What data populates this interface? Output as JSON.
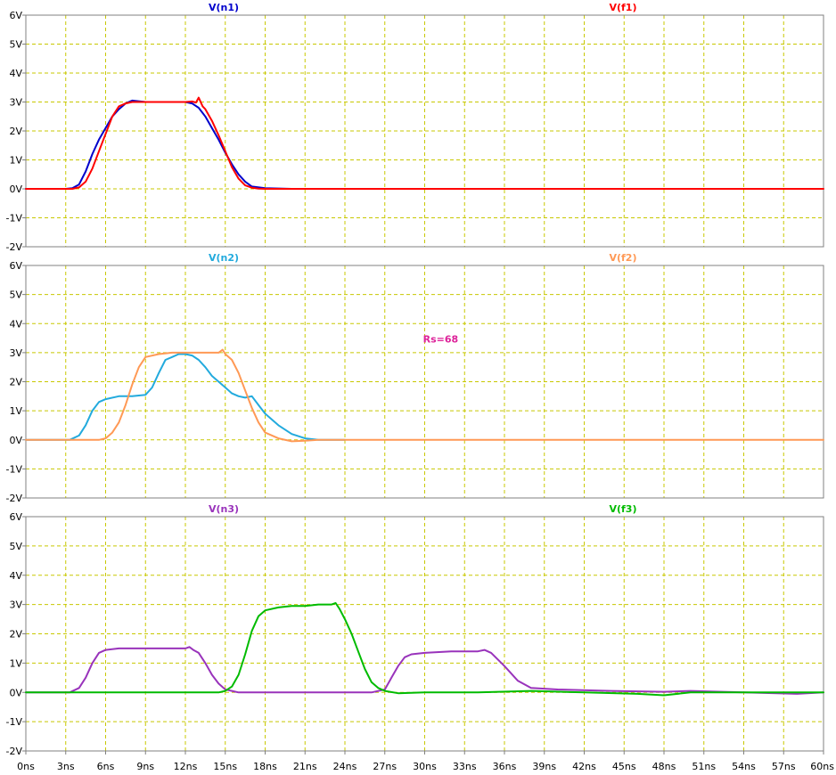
{
  "chart_data": [
    {
      "type": "line",
      "title": "",
      "xlabel": "",
      "ylabel": "",
      "xlim": [
        0,
        60
      ],
      "ylim": [
        -2,
        6
      ],
      "grid": true,
      "legend_placement": "top",
      "series": [
        {
          "name": "V(n1)",
          "color": "#0000cc",
          "x": [
            0,
            3,
            3.5,
            4,
            4.5,
            5,
            5.5,
            6,
            6.5,
            7,
            7.5,
            8,
            9,
            10,
            11,
            12,
            12.5,
            13,
            13.5,
            14,
            14.5,
            15,
            15.5,
            16,
            16.5,
            17,
            18,
            20,
            24
          ],
          "y": [
            0,
            0,
            0.02,
            0.15,
            0.6,
            1.2,
            1.7,
            2.1,
            2.5,
            2.75,
            2.95,
            3.05,
            3.0,
            3.0,
            3.0,
            3.0,
            2.95,
            2.8,
            2.5,
            2.1,
            1.7,
            1.25,
            0.85,
            0.5,
            0.25,
            0.08,
            0.02,
            0,
            0
          ]
        },
        {
          "name": "V(f1)",
          "color": "#ff0000",
          "x": [
            0,
            3.5,
            4,
            4.5,
            5,
            5.5,
            6,
            6.5,
            7,
            7.5,
            8,
            8.5,
            9,
            10,
            11,
            12,
            12.5,
            12.8,
            13,
            13.3,
            13.5,
            14,
            14.5,
            15,
            15.5,
            16,
            16.5,
            17,
            17.5,
            18,
            24,
            60
          ],
          "y": [
            0,
            0,
            0.05,
            0.25,
            0.7,
            1.3,
            1.9,
            2.5,
            2.85,
            2.95,
            3.0,
            3.0,
            3.0,
            3.0,
            3.0,
            3.0,
            3.02,
            2.98,
            3.15,
            2.85,
            2.75,
            2.35,
            1.85,
            1.3,
            0.75,
            0.35,
            0.12,
            0.04,
            0.01,
            0,
            0,
            0
          ]
        }
      ]
    },
    {
      "type": "line",
      "title": "",
      "xlabel": "",
      "ylabel": "",
      "xlim": [
        0,
        60
      ],
      "ylim": [
        -2,
        6
      ],
      "grid": true,
      "legend_placement": "top",
      "annotations": [
        "Rs=68"
      ],
      "series": [
        {
          "name": "V(n2)",
          "color": "#22aadd",
          "x": [
            0,
            3.3,
            4,
            4.5,
            5,
            5.5,
            6,
            7,
            8,
            9,
            9.5,
            10,
            10.5,
            11,
            11.5,
            12,
            12.5,
            13,
            13.5,
            14,
            15,
            15.5,
            16,
            16.5,
            17,
            17.5,
            18,
            19,
            20,
            21,
            22,
            24
          ],
          "y": [
            0,
            0,
            0.15,
            0.5,
            1.0,
            1.3,
            1.4,
            1.5,
            1.5,
            1.55,
            1.8,
            2.3,
            2.75,
            2.85,
            2.95,
            2.95,
            2.9,
            2.75,
            2.5,
            2.2,
            1.8,
            1.6,
            1.5,
            1.45,
            1.5,
            1.2,
            0.9,
            0.5,
            0.2,
            0.05,
            0,
            0
          ]
        },
        {
          "name": "V(f2)",
          "color": "#ff9955",
          "x": [
            0,
            5.5,
            6,
            6.5,
            7,
            7.5,
            8,
            8.5,
            9,
            10,
            11,
            12,
            13,
            14,
            14.5,
            14.8,
            15,
            15.5,
            16,
            16.5,
            17,
            17.5,
            18,
            19,
            20,
            21,
            22,
            60
          ],
          "y": [
            0,
            0,
            0.05,
            0.25,
            0.6,
            1.2,
            1.9,
            2.5,
            2.85,
            2.95,
            3.0,
            3.0,
            3.0,
            3.0,
            3.0,
            3.1,
            2.95,
            2.75,
            2.3,
            1.7,
            1.1,
            0.6,
            0.25,
            0.05,
            -0.05,
            -0.03,
            0,
            0
          ]
        }
      ]
    },
    {
      "type": "line",
      "title": "",
      "xlabel": "",
      "ylabel": "",
      "xlim": [
        0,
        60
      ],
      "ylim": [
        -2,
        6
      ],
      "grid": true,
      "legend_placement": "top",
      "series": [
        {
          "name": "V(n3)",
          "color": "#9933bb",
          "x": [
            0,
            3.3,
            4,
            4.5,
            5,
            5.5,
            6,
            7,
            8,
            9,
            10,
            11,
            12,
            12.3,
            12.6,
            13,
            13.5,
            14,
            14.5,
            15,
            15.5,
            16,
            17,
            18,
            20,
            22,
            24,
            26,
            27,
            27.5,
            28,
            28.5,
            29,
            30,
            32,
            34,
            34.5,
            35,
            36,
            37,
            38,
            40,
            44,
            48,
            50,
            54,
            58,
            60
          ],
          "y": [
            0,
            0,
            0.15,
            0.5,
            1.0,
            1.35,
            1.45,
            1.5,
            1.5,
            1.5,
            1.5,
            1.5,
            1.5,
            1.55,
            1.45,
            1.35,
            1.0,
            0.6,
            0.3,
            0.1,
            0.05,
            0,
            0,
            0,
            0,
            0,
            0,
            0,
            0.1,
            0.5,
            0.9,
            1.2,
            1.3,
            1.35,
            1.4,
            1.4,
            1.45,
            1.35,
            0.9,
            0.4,
            0.15,
            0.1,
            0.05,
            0.02,
            0.05,
            0,
            -0.05,
            0
          ]
        },
        {
          "name": "V(f3)",
          "color": "#00bb00",
          "x": [
            0,
            14.5,
            15,
            15.5,
            16,
            16.5,
            17,
            17.5,
            18,
            19,
            20,
            21,
            22,
            23,
            23.3,
            23.6,
            24,
            24.5,
            25,
            25.5,
            26,
            26.5,
            27,
            28,
            30,
            34,
            38,
            42,
            46,
            48,
            50,
            54,
            58,
            60
          ],
          "y": [
            0,
            0,
            0.05,
            0.2,
            0.6,
            1.3,
            2.1,
            2.6,
            2.8,
            2.9,
            2.95,
            2.95,
            3.0,
            3.0,
            3.05,
            2.85,
            2.5,
            2.0,
            1.4,
            0.8,
            0.35,
            0.15,
            0.05,
            -0.03,
            0,
            0,
            0.05,
            0,
            -0.05,
            -0.1,
            0,
            0,
            0,
            0
          ]
        }
      ]
    }
  ],
  "axis_labels": {
    "y_ticks": [
      "6V",
      "5V",
      "4V",
      "3V",
      "2V",
      "1V",
      "0V",
      "-1V",
      "-2V"
    ],
    "y_tick_values": [
      6,
      5,
      4,
      3,
      2,
      1,
      0,
      -1,
      -2
    ],
    "x_ticks": [
      "0ns",
      "3ns",
      "6ns",
      "9ns",
      "12ns",
      "15ns",
      "18ns",
      "21ns",
      "24ns",
      "27ns",
      "30ns",
      "33ns",
      "36ns",
      "39ns",
      "42ns",
      "45ns",
      "48ns",
      "51ns",
      "54ns",
      "57ns",
      "60ns"
    ],
    "x_tick_values": [
      0,
      3,
      6,
      9,
      12,
      15,
      18,
      21,
      24,
      27,
      30,
      33,
      36,
      39,
      42,
      45,
      48,
      51,
      54,
      57,
      60
    ]
  },
  "colors": {
    "grid": "#c8c800",
    "frame": "#808080",
    "annotation": "#dd2299",
    "background": "#ffffff"
  }
}
